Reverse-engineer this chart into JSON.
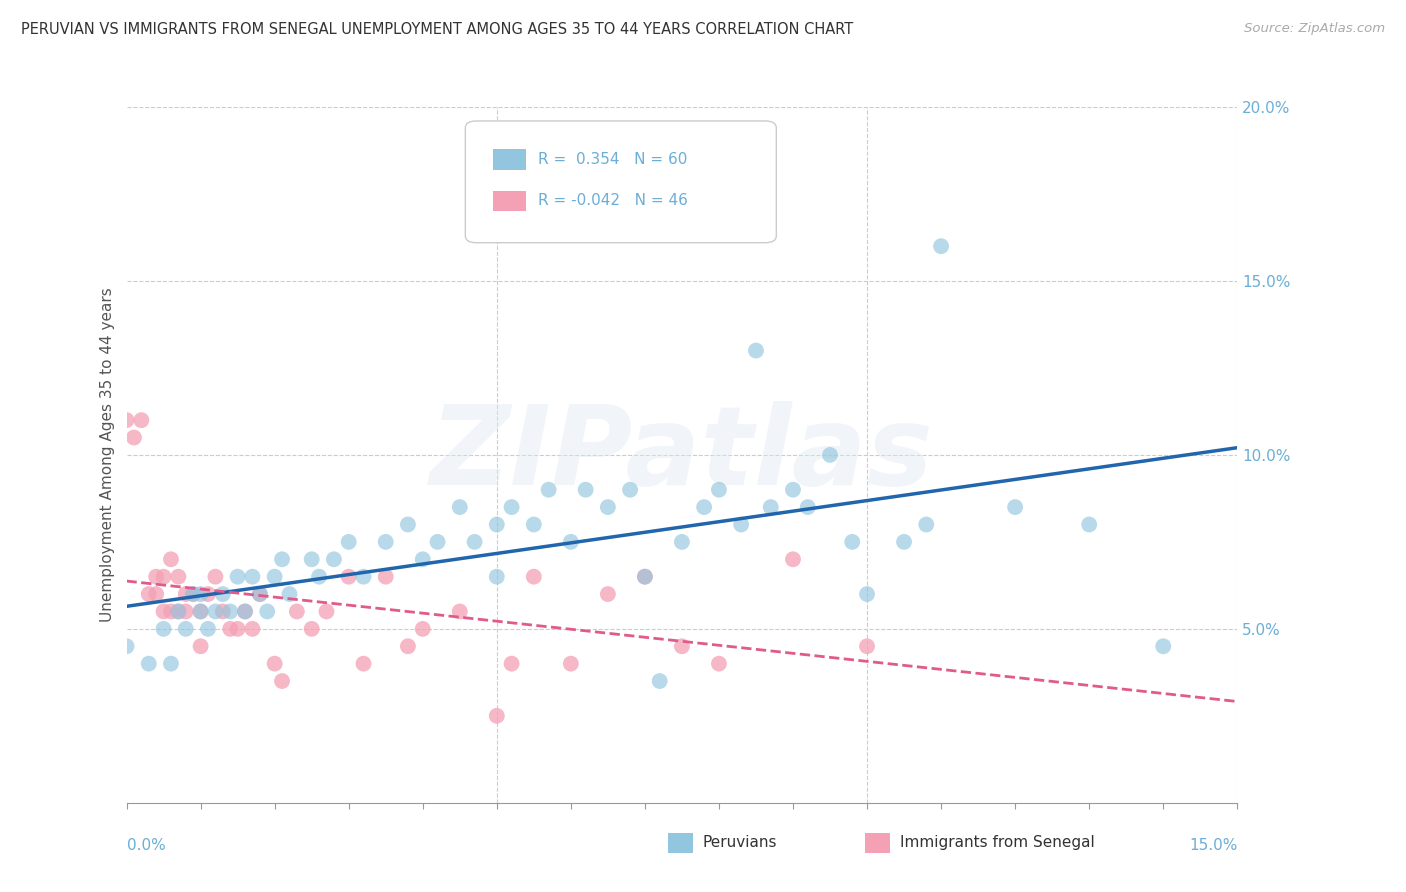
{
  "title": "PERUVIAN VS IMMIGRANTS FROM SENEGAL UNEMPLOYMENT AMONG AGES 35 TO 44 YEARS CORRELATION CHART",
  "source": "Source: ZipAtlas.com",
  "xlim": [
    0.0,
    0.15
  ],
  "ylim": [
    0.0,
    0.2
  ],
  "ylabel": "Unemployment Among Ages 35 to 44 years",
  "peruvian_color": "#92c5de",
  "senegal_color": "#f4a0b5",
  "peruvian_line_color": "#2166ac",
  "senegal_line_color": "#e05a8a",
  "R_peruvian": 0.354,
  "N_peruvian": 60,
  "R_senegal": -0.042,
  "N_senegal": 46,
  "legend_peruvians": "Peruvians",
  "legend_senegal": "Immigrants from Senegal",
  "watermark": "ZIPatlas",
  "background_color": "#ffffff",
  "grid_color": "#cccccc",
  "tick_color": "#6baed6",
  "peruvian_x": [
    0.0,
    0.003,
    0.005,
    0.006,
    0.007,
    0.008,
    0.009,
    0.01,
    0.01,
    0.011,
    0.012,
    0.013,
    0.014,
    0.015,
    0.016,
    0.017,
    0.018,
    0.019,
    0.02,
    0.021,
    0.022,
    0.025,
    0.026,
    0.028,
    0.03,
    0.032,
    0.035,
    0.038,
    0.04,
    0.042,
    0.045,
    0.047,
    0.05,
    0.05,
    0.052,
    0.055,
    0.057,
    0.06,
    0.062,
    0.065,
    0.068,
    0.07,
    0.072,
    0.075,
    0.078,
    0.08,
    0.083,
    0.085,
    0.087,
    0.09,
    0.092,
    0.095,
    0.098,
    0.1,
    0.105,
    0.108,
    0.11,
    0.12,
    0.13,
    0.14
  ],
  "peruvian_y": [
    0.045,
    0.04,
    0.05,
    0.04,
    0.055,
    0.05,
    0.06,
    0.055,
    0.06,
    0.05,
    0.055,
    0.06,
    0.055,
    0.065,
    0.055,
    0.065,
    0.06,
    0.055,
    0.065,
    0.07,
    0.06,
    0.07,
    0.065,
    0.07,
    0.075,
    0.065,
    0.075,
    0.08,
    0.07,
    0.075,
    0.085,
    0.075,
    0.065,
    0.08,
    0.085,
    0.08,
    0.09,
    0.075,
    0.09,
    0.085,
    0.09,
    0.065,
    0.035,
    0.075,
    0.085,
    0.09,
    0.08,
    0.13,
    0.085,
    0.09,
    0.085,
    0.1,
    0.075,
    0.06,
    0.075,
    0.08,
    0.16,
    0.085,
    0.08,
    0.045
  ],
  "senegal_x": [
    0.0,
    0.001,
    0.002,
    0.003,
    0.004,
    0.004,
    0.005,
    0.005,
    0.006,
    0.006,
    0.007,
    0.007,
    0.008,
    0.008,
    0.009,
    0.01,
    0.01,
    0.011,
    0.012,
    0.013,
    0.014,
    0.015,
    0.016,
    0.017,
    0.018,
    0.02,
    0.021,
    0.023,
    0.025,
    0.027,
    0.03,
    0.032,
    0.035,
    0.038,
    0.04,
    0.045,
    0.05,
    0.052,
    0.055,
    0.06,
    0.065,
    0.07,
    0.075,
    0.08,
    0.09,
    0.1
  ],
  "senegal_y": [
    0.11,
    0.105,
    0.11,
    0.06,
    0.065,
    0.06,
    0.065,
    0.055,
    0.07,
    0.055,
    0.065,
    0.055,
    0.06,
    0.055,
    0.06,
    0.055,
    0.045,
    0.06,
    0.065,
    0.055,
    0.05,
    0.05,
    0.055,
    0.05,
    0.06,
    0.04,
    0.035,
    0.055,
    0.05,
    0.055,
    0.065,
    0.04,
    0.065,
    0.045,
    0.05,
    0.055,
    0.025,
    0.04,
    0.065,
    0.04,
    0.06,
    0.065,
    0.045,
    0.04,
    0.07,
    0.045
  ]
}
